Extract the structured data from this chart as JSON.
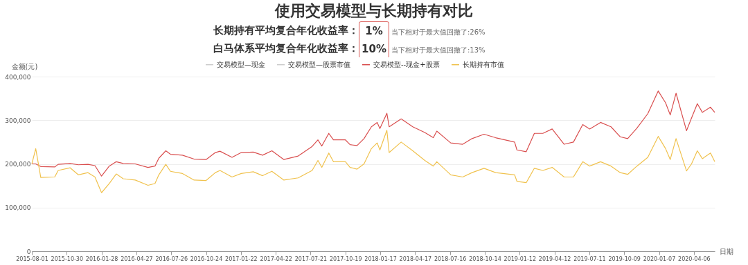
{
  "chart_data": {
    "type": "line",
    "title": "使用交易模型与长期持有对比",
    "annotations": [
      "长期持有平均复合年化收益率：",
      "1%",
      "当下相对于最大值回撤了:26%",
      "白马体系平均复合年化收益率：",
      "10%",
      "当下相对于最大值回撤了:13%"
    ],
    "xlabel": "日期",
    "ylabel": "金额(元)",
    "xlim": [
      "2015-08-01",
      "2020-05-30"
    ],
    "xticks": [
      "2015-08-01",
      "2015-10-30",
      "2016-01-28",
      "2016-04-27",
      "2016-07-26",
      "2016-10-24",
      "2017-01-22",
      "2017-04-22",
      "2017-07-21",
      "2017-10-19",
      "2018-01-17",
      "2018-04-17",
      "2018-07-16",
      "2018-10-14",
      "2019-01-12",
      "2019-04-12",
      "2019-07-11",
      "2019-10-09",
      "2020-01-07",
      "2020-04-06"
    ],
    "ylim": [
      0,
      400000
    ],
    "yticks": [
      0,
      {
        "value": 100000,
        "label": "100,000"
      },
      {
        "value": 200000,
        "label": "200,000"
      },
      {
        "value": 300000,
        "label": "300,000"
      },
      {
        "value": 400000,
        "label": "400,000"
      }
    ],
    "grid": "y",
    "legend": "top",
    "x": [
      "2015-08-01",
      "2015-08-11",
      "2015-08-24",
      "2015-09-29",
      "2015-10-08",
      "2015-11-08",
      "2015-11-29",
      "2015-12-24",
      "2016-01-11",
      "2016-01-28",
      "2016-02-17",
      "2016-03-06",
      "2016-03-24",
      "2016-04-24",
      "2016-05-27",
      "2016-06-14",
      "2016-06-24",
      "2016-07-12",
      "2016-07-24",
      "2016-08-24",
      "2016-09-23",
      "2016-10-24",
      "2016-11-17",
      "2016-11-29",
      "2016-12-30",
      "2017-01-23",
      "2017-02-23",
      "2017-03-19",
      "2017-04-12",
      "2017-05-13",
      "2017-06-19",
      "2017-07-25",
      "2017-08-09",
      "2017-08-19",
      "2017-09-06",
      "2017-09-18",
      "2017-10-19",
      "2017-10-31",
      "2017-11-18",
      "2017-12-06",
      "2017-12-25",
      "2018-01-09",
      "2018-01-16",
      "2018-02-03",
      "2018-02-09",
      "2018-03-12",
      "2018-04-11",
      "2018-05-12",
      "2018-06-03",
      "2018-06-12",
      "2018-07-18",
      "2018-08-18",
      "2018-09-11",
      "2018-10-12",
      "2018-11-11",
      "2018-12-30",
      "2019-01-05",
      "2019-01-29",
      "2019-02-19",
      "2019-03-13",
      "2019-04-06",
      "2019-05-07",
      "2019-05-31",
      "2019-06-24",
      "2019-07-12",
      "2019-08-09",
      "2019-09-05",
      "2019-09-29",
      "2019-10-18",
      "2019-11-11",
      "2019-12-09",
      "2020-01-05",
      "2020-01-24",
      "2020-02-05",
      "2020-02-20",
      "2020-03-18",
      "2020-03-31",
      "2020-04-15",
      "2020-04-28",
      "2020-05-19",
      "2020-05-30"
    ],
    "series": [
      {
        "name": "交易模型—现金",
        "color": "#cccccc",
        "values": [
          null,
          null,
          null,
          null,
          null,
          null,
          null,
          null,
          null,
          null,
          null,
          null,
          null,
          null,
          null,
          null,
          null,
          null,
          null,
          null,
          null,
          null,
          null,
          null,
          null,
          null,
          null,
          null,
          null,
          null,
          null,
          null,
          null,
          null,
          null,
          null,
          null,
          null,
          null,
          null,
          null,
          null,
          null,
          null,
          null,
          null,
          null,
          null,
          null,
          null,
          null,
          null,
          null,
          null,
          null,
          null,
          null,
          null,
          null,
          null,
          null,
          null,
          null,
          null,
          null,
          null,
          null,
          null,
          null,
          null,
          null,
          null,
          null,
          null,
          null,
          null,
          null,
          null,
          null,
          null,
          null
        ]
      },
      {
        "name": "交易模型—股票市值",
        "color": "#cccccc",
        "values": [
          null,
          null,
          null,
          null,
          null,
          null,
          null,
          null,
          null,
          null,
          null,
          null,
          null,
          null,
          null,
          null,
          null,
          null,
          null,
          null,
          null,
          null,
          null,
          null,
          null,
          null,
          null,
          null,
          null,
          null,
          null,
          null,
          null,
          null,
          null,
          null,
          null,
          null,
          null,
          null,
          null,
          null,
          null,
          null,
          null,
          null,
          null,
          null,
          null,
          null,
          null,
          null,
          null,
          null,
          null,
          null,
          null,
          null,
          null,
          null,
          null,
          null,
          null,
          null,
          null,
          null,
          null,
          null,
          null,
          null,
          null,
          null,
          null,
          null,
          null,
          null,
          null,
          null,
          null,
          null,
          null
        ]
      },
      {
        "name": "交易模型--现金+股票",
        "color": "#d94e4e",
        "values": [
          200000,
          200000,
          194000,
          193000,
          199000,
          201000,
          198000,
          199000,
          196000,
          172000,
          195000,
          205000,
          201000,
          200000,
          192000,
          195000,
          213000,
          230000,
          222000,
          220000,
          211000,
          210000,
          226000,
          229000,
          215000,
          226000,
          227000,
          220000,
          230000,
          210000,
          218000,
          240000,
          255000,
          241000,
          270000,
          255000,
          255000,
          244000,
          242000,
          258000,
          285000,
          295000,
          281000,
          316000,
          285000,
          303000,
          285000,
          272000,
          260000,
          275000,
          248000,
          245000,
          258000,
          268000,
          260000,
          250000,
          232000,
          228000,
          270000,
          270000,
          280000,
          245000,
          250000,
          290000,
          280000,
          295000,
          285000,
          262000,
          258000,
          282000,
          315000,
          367000,
          340000,
          312000,
          362000,
          276000,
          305000,
          338000,
          318000,
          330000,
          318000
        ]
      },
      {
        "name": "长期持有市值",
        "color": "#f0c24e",
        "values": [
          200000,
          235000,
          169000,
          170000,
          185000,
          191000,
          175000,
          180000,
          170000,
          134000,
          155000,
          177000,
          166000,
          163000,
          151000,
          155000,
          175000,
          199000,
          183000,
          178000,
          163000,
          162000,
          180000,
          185000,
          170000,
          178000,
          182000,
          173000,
          183000,
          163000,
          168000,
          185000,
          208000,
          192000,
          225000,
          205000,
          205000,
          192000,
          188000,
          200000,
          235000,
          248000,
          232000,
          277000,
          226000,
          250000,
          230000,
          208000,
          195000,
          205000,
          175000,
          170000,
          180000,
          190000,
          180000,
          175000,
          160000,
          157000,
          190000,
          185000,
          192000,
          170000,
          170000,
          205000,
          195000,
          205000,
          195000,
          180000,
          176000,
          195000,
          215000,
          263000,
          235000,
          210000,
          258000,
          184000,
          200000,
          230000,
          212000,
          225000,
          205000
        ]
      }
    ]
  }
}
